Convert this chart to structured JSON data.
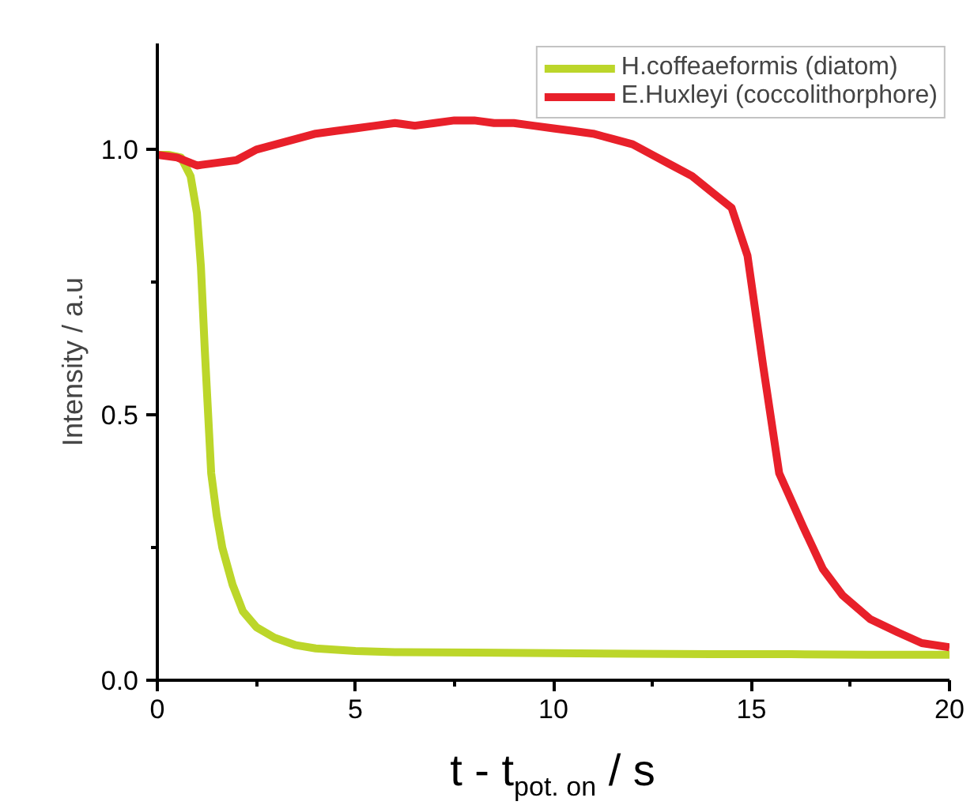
{
  "chart_data": {
    "type": "line",
    "xlabel": "t - t$_{pot. on}$ / s",
    "ylabel": "Intensity / a.u",
    "xlim": [
      0,
      20
    ],
    "ylim": [
      0,
      1.2
    ],
    "xticks": [
      0,
      {
        "value": 2.5,
        "label": null
      },
      5,
      {
        "value": 7.5,
        "label": null
      },
      10,
      {
        "value": 12.5,
        "label": null
      },
      15,
      {
        "value": 17.5,
        "label": null
      },
      20
    ],
    "yticks": [
      "0.0",
      {
        "value": 0.25,
        "label": null
      },
      {
        "value": 0.5,
        "label": "0.5"
      },
      {
        "value": 0.75,
        "label": null
      },
      {
        "value": 1.0,
        "label": "1.0"
      }
    ],
    "grid": false,
    "legend": "top right",
    "line_style": "solid",
    "marker": "none",
    "series": [
      {
        "name": "H.coffeaeformis (diatom)",
        "color": "#bcd62a",
        "x": [
          0,
          0.3,
          0.6,
          0.84,
          1.0,
          1.1,
          1.2,
          1.36,
          1.5,
          1.64,
          1.9,
          2.16,
          2.5,
          2.96,
          3.5,
          4.0,
          5,
          6,
          8,
          10,
          12,
          14,
          16,
          18,
          20
        ],
        "values": [
          0.99,
          0.99,
          0.985,
          0.95,
          0.88,
          0.78,
          0.62,
          0.39,
          0.31,
          0.25,
          0.18,
          0.13,
          0.1,
          0.08,
          0.066,
          0.06,
          0.055,
          0.053,
          0.052,
          0.051,
          0.05,
          0.049,
          0.049,
          0.048,
          0.048
        ]
      },
      {
        "name": "E.Huxleyi (coccolithorphore)",
        "color": "#e8202a",
        "x": [
          0,
          0.5,
          1.0,
          1.5,
          2,
          2.5,
          3,
          3.5,
          4,
          4.5,
          5,
          5.5,
          6,
          6.5,
          7,
          7.5,
          8,
          8.5,
          9,
          9.5,
          10,
          10.5,
          11,
          11.5,
          12,
          12.5,
          13,
          13.5,
          14,
          14.5,
          14.9,
          15.3,
          15.7,
          16.3,
          16.8,
          17.3,
          18,
          18.7,
          19.3,
          20
        ],
        "values": [
          0.99,
          0.985,
          0.97,
          0.975,
          0.98,
          1.0,
          1.01,
          1.02,
          1.03,
          1.035,
          1.04,
          1.045,
          1.05,
          1.045,
          1.05,
          1.055,
          1.055,
          1.05,
          1.05,
          1.045,
          1.04,
          1.035,
          1.03,
          1.02,
          1.01,
          0.99,
          0.97,
          0.95,
          0.92,
          0.89,
          0.8,
          0.59,
          0.39,
          0.29,
          0.21,
          0.16,
          0.115,
          0.09,
          0.07,
          0.062
        ]
      }
    ]
  }
}
